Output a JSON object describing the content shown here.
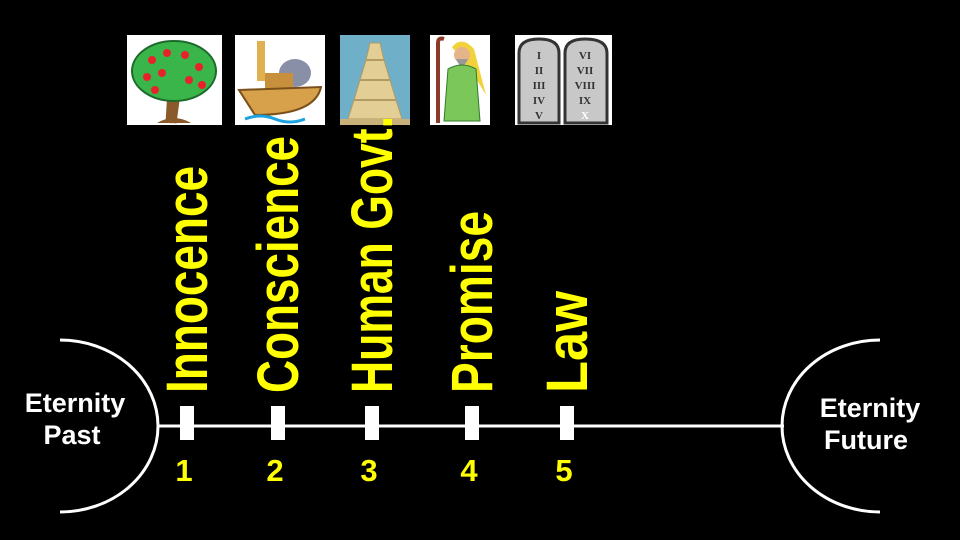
{
  "colors": {
    "background": "#000000",
    "label": "#ffff00",
    "line": "#ffffff"
  },
  "start": {
    "line1": "Eternity",
    "line2": "Past"
  },
  "end": {
    "line1": "Eternity",
    "line2": "Future"
  },
  "dispensations": [
    {
      "number": "1",
      "name": "Innocence",
      "picture": "apple-tree-icon"
    },
    {
      "number": "2",
      "name": "Conscience",
      "picture": "noahs-ark-icon"
    },
    {
      "number": "3",
      "name": "Human Govt.",
      "picture": "tower-of-babel-icon"
    },
    {
      "number": "4",
      "name": "Promise",
      "picture": "abraham-icon"
    },
    {
      "number": "5",
      "name": "Law",
      "picture": "ten-commandments-tablets-icon",
      "tablet_left": [
        "I",
        "II",
        "III",
        "IV",
        "V"
      ],
      "tablet_right": [
        "VI",
        "VII",
        "VIII",
        "IX",
        "X"
      ]
    }
  ]
}
